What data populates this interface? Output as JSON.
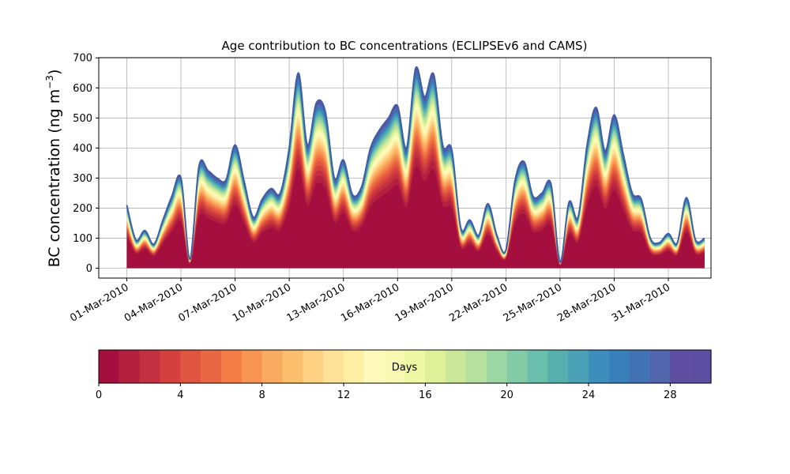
{
  "chart_data": {
    "type": "area",
    "stacked": true,
    "title": "Age contribution to BC concentrations (ECLIPSEv6 and CAMS)",
    "ylabel_main": "BC concentration (ng m",
    "ylabel_exp": "−3",
    "ylabel_close": ")",
    "xlabel": "",
    "ylim": [
      0,
      700
    ],
    "yticks": [
      0,
      100,
      200,
      300,
      400,
      500,
      600,
      700
    ],
    "x_start": "2010-03-01",
    "x_end_label": "2010-04-02",
    "xtick_labels": [
      "01-Mar-2010",
      "04-Mar-2010",
      "07-Mar-2010",
      "10-Mar-2010",
      "13-Mar-2010",
      "16-Mar-2010",
      "19-Mar-2010",
      "22-Mar-2010",
      "25-Mar-2010",
      "28-Mar-2010",
      "31-Mar-2010"
    ],
    "grid": true,
    "total_series": {
      "name": "Total",
      "points": [
        [
          "2010-03-01",
          210
        ],
        [
          "2010-03-01T12:00",
          95
        ],
        [
          "2010-03-02",
          125
        ],
        [
          "2010-03-02T12:00",
          80
        ],
        [
          "2010-03-03",
          160
        ],
        [
          "2010-03-03T12:00",
          240
        ],
        [
          "2010-03-04",
          300
        ],
        [
          "2010-03-04T12:00",
          30
        ],
        [
          "2010-03-05",
          340
        ],
        [
          "2010-03-05T12:00",
          325
        ],
        [
          "2010-03-06",
          300
        ],
        [
          "2010-03-06T12:00",
          295
        ],
        [
          "2010-03-07",
          410
        ],
        [
          "2010-03-07T12:00",
          290
        ],
        [
          "2010-03-08",
          170
        ],
        [
          "2010-03-08T12:00",
          230
        ],
        [
          "2010-03-09",
          265
        ],
        [
          "2010-03-09T12:00",
          250
        ],
        [
          "2010-03-10",
          400
        ],
        [
          "2010-03-10T12:00",
          650
        ],
        [
          "2010-03-11",
          410
        ],
        [
          "2010-03-11T12:00",
          550
        ],
        [
          "2010-03-12",
          520
        ],
        [
          "2010-03-12T12:00",
          300
        ],
        [
          "2010-03-13",
          360
        ],
        [
          "2010-03-13T12:00",
          245
        ],
        [
          "2010-03-14",
          270
        ],
        [
          "2010-03-14T12:00",
          400
        ],
        [
          "2010-03-15",
          460
        ],
        [
          "2010-03-15T12:00",
          500
        ],
        [
          "2010-03-16",
          540
        ],
        [
          "2010-03-16T12:00",
          400
        ],
        [
          "2010-03-17",
          665
        ],
        [
          "2010-03-17T12:00",
          570
        ],
        [
          "2010-03-18",
          645
        ],
        [
          "2010-03-18T12:00",
          410
        ],
        [
          "2010-03-19",
          395
        ],
        [
          "2010-03-19T12:00",
          135
        ],
        [
          "2010-03-20",
          160
        ],
        [
          "2010-03-20T12:00",
          110
        ],
        [
          "2010-03-21",
          215
        ],
        [
          "2010-03-21T12:00",
          110
        ],
        [
          "2010-03-22",
          60
        ],
        [
          "2010-03-22T12:00",
          290
        ],
        [
          "2010-03-23",
          355
        ],
        [
          "2010-03-23T12:00",
          240
        ],
        [
          "2010-03-24",
          250
        ],
        [
          "2010-03-24T12:00",
          280
        ],
        [
          "2010-03-25",
          20
        ],
        [
          "2010-03-25T12:00",
          220
        ],
        [
          "2010-03-26",
          170
        ],
        [
          "2010-03-26T12:00",
          410
        ],
        [
          "2010-03-27",
          535
        ],
        [
          "2010-03-27T12:00",
          390
        ],
        [
          "2010-03-28",
          510
        ],
        [
          "2010-03-28T12:00",
          380
        ],
        [
          "2010-03-29",
          250
        ],
        [
          "2010-03-29T12:00",
          230
        ],
        [
          "2010-03-30",
          100
        ],
        [
          "2010-03-30T12:00",
          85
        ],
        [
          "2010-03-31",
          115
        ],
        [
          "2010-03-31T12:00",
          85
        ],
        [
          "2010-04-01",
          235
        ],
        [
          "2010-04-01T12:00",
          95
        ],
        [
          "2010-04-02",
          100
        ]
      ]
    },
    "colorbar": {
      "label": "Days",
      "min": 0,
      "max": 30,
      "ticks": [
        0,
        4,
        8,
        12,
        16,
        20,
        24,
        28
      ],
      "colors": [
        "#a50f3f",
        "#b4213e",
        "#c3303f",
        "#d3403e",
        "#e0553f",
        "#ea6743",
        "#f47c47",
        "#f89553",
        "#faab62",
        "#fcbf6e",
        "#fdd282",
        "#fee298",
        "#feefa5",
        "#fffbbd",
        "#f8fab4",
        "#eef7a4",
        "#dff099",
        "#cbe79a",
        "#b5e1a0",
        "#9cd6a4",
        "#82cba6",
        "#6abfab",
        "#58b0ae",
        "#4aa0b4",
        "#3d8ebc",
        "#3780ba",
        "#4373b4",
        "#5266ad",
        "#5e4fa2",
        "#5c4ea1"
      ]
    }
  }
}
